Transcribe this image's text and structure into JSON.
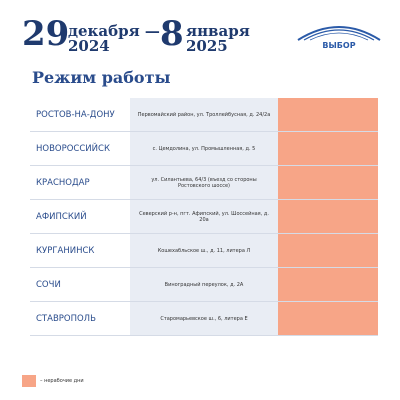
{
  "header": {
    "day_start": "29",
    "month_start": "декабря —",
    "year_start": "2024",
    "day_end": "8",
    "month_end": "января",
    "year_end": "2025",
    "logo": "ВЫБОР"
  },
  "title": "Режим работы",
  "table": {
    "rows": [
      [
        "РОСТОВ-НА-ДОНУ",
        "Первомайский район, ул. Троллейбусная, д. 24/2а"
      ],
      [
        "НОВОРОССИЙСК",
        "с. Цемдолина, ул. Промышленная, д. 5"
      ],
      [
        "КРАСНОДАР",
        "ул. Силантьева, 64/3 (въезд со стороны Ростовского шоссе)"
      ],
      [
        "АФИПСКИЙ",
        "Северский р-н, пгт. Афипский, ул. Шоссейная, д. 20а"
      ],
      [
        "КУРГАНИНСК",
        "Кошехабльское ш., д. 11, литера Л"
      ],
      [
        "СОЧИ",
        "Виноградный переулок, д. 2А"
      ],
      [
        "СТАВРОПОЛЬ",
        "Старомарьевское ш., 6, литера Е"
      ]
    ]
  },
  "legend": "– нерабочие дни"
}
